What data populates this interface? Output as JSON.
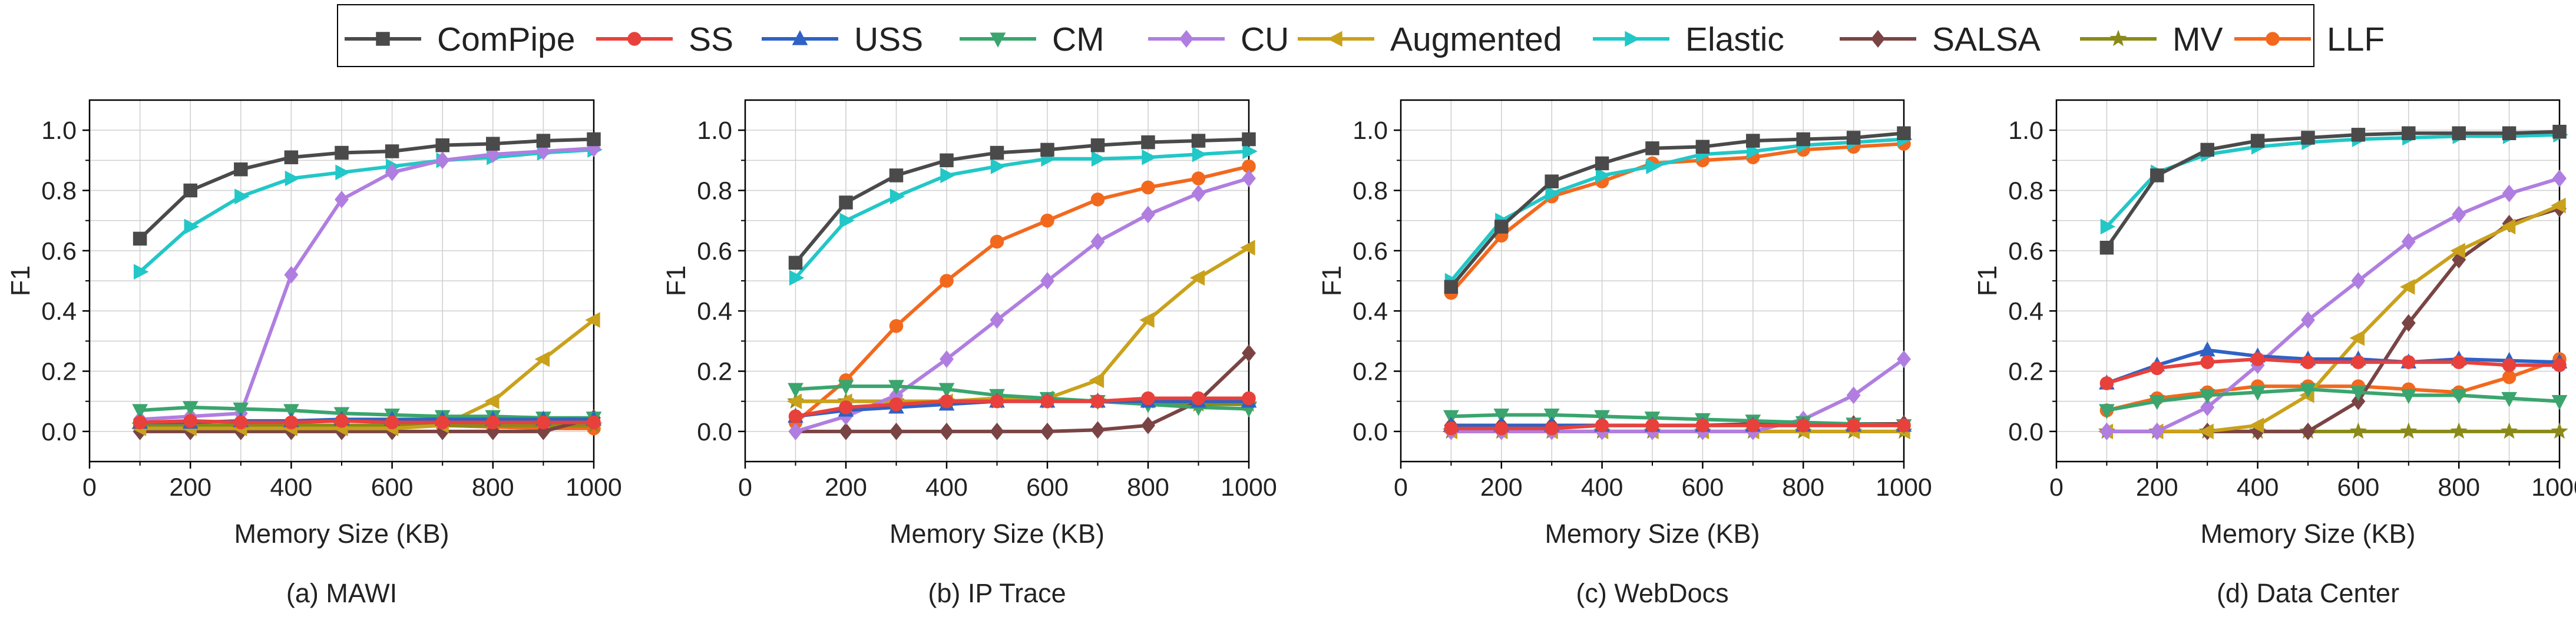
{
  "figure": {
    "subplots": [
      {
        "caption": "(a) MAWI"
      },
      {
        "caption": "(b) IP Trace"
      },
      {
        "caption": "(c) WebDocs"
      },
      {
        "caption": "(d) Data Center"
      }
    ]
  },
  "legend": {
    "entries": [
      "ComPipe",
      "SS",
      "USS",
      "CM",
      "CU",
      "Augmented",
      "Elastic",
      "SALSA",
      "MV",
      "LLF"
    ]
  },
  "series_style": {
    "ComPipe": {
      "color": "#4a4a4a",
      "marker": "square"
    },
    "SS": {
      "color": "#e8413c",
      "marker": "circle"
    },
    "USS": {
      "color": "#2f62c4",
      "marker": "triangle-up"
    },
    "CM": {
      "color": "#3aa56e",
      "marker": "triangle-down"
    },
    "CU": {
      "color": "#b07ee0",
      "marker": "diamond"
    },
    "Augmented": {
      "color": "#c9a11b",
      "marker": "triangle-left"
    },
    "Elastic": {
      "color": "#22c7c7",
      "marker": "triangle-right"
    },
    "SALSA": {
      "color": "#7a4444",
      "marker": "diamond"
    },
    "MV": {
      "color": "#8a8a18",
      "marker": "star"
    },
    "LLF": {
      "color": "#f2691e",
      "marker": "circle"
    }
  },
  "chart_data": [
    {
      "type": "line",
      "title": "(a) MAWI",
      "xlabel": "Memory Size (KB)",
      "ylabel": "F1",
      "xlim": [
        0,
        1000
      ],
      "ylim": [
        -0.1,
        1.1
      ],
      "xticks": [
        "0",
        "200",
        "400",
        "600",
        "800",
        "1000"
      ],
      "yticks": [
        "0.0",
        "0.2",
        "0.4",
        "0.6",
        "0.8",
        "1.0"
      ],
      "grid": true,
      "x": [
        100,
        200,
        300,
        400,
        500,
        600,
        700,
        800,
        900,
        1000
      ],
      "series": [
        {
          "name": "ComPipe",
          "values": [
            0.64,
            0.8,
            0.87,
            0.91,
            0.925,
            0.93,
            0.95,
            0.955,
            0.965,
            0.97
          ]
        },
        {
          "name": "SS",
          "values": [
            0.03,
            0.035,
            0.03,
            0.03,
            0.035,
            0.03,
            0.03,
            0.03,
            0.03,
            0.03
          ]
        },
        {
          "name": "USS",
          "values": [
            0.03,
            0.03,
            0.035,
            0.035,
            0.04,
            0.04,
            0.04,
            0.04,
            0.04,
            0.04
          ]
        },
        {
          "name": "CM",
          "values": [
            0.07,
            0.08,
            0.075,
            0.07,
            0.06,
            0.055,
            0.05,
            0.05,
            0.045,
            0.045
          ]
        },
        {
          "name": "CU",
          "values": [
            0.04,
            0.05,
            0.06,
            0.52,
            0.77,
            0.86,
            0.9,
            0.92,
            0.93,
            0.94
          ]
        },
        {
          "name": "Augmented",
          "values": [
            0.01,
            0.01,
            0.01,
            0.01,
            0.01,
            0.01,
            0.02,
            0.1,
            0.24,
            0.37
          ]
        },
        {
          "name": "Elastic",
          "values": [
            0.53,
            0.68,
            0.78,
            0.84,
            0.86,
            0.88,
            0.9,
            0.91,
            0.925,
            0.935
          ]
        },
        {
          "name": "SALSA",
          "values": [
            0.0,
            0.0,
            0.0,
            0.0,
            0.0,
            0.0,
            0.0,
            0.0,
            0.0,
            0.045
          ]
        },
        {
          "name": "MV",
          "values": [
            0.02,
            0.02,
            0.02,
            0.02,
            0.02,
            0.02,
            0.02,
            0.02,
            0.02,
            0.02
          ]
        },
        {
          "name": "LLF",
          "values": [
            0.02,
            0.02,
            0.02,
            0.02,
            0.02,
            0.02,
            0.02,
            0.015,
            0.01,
            0.01
          ]
        }
      ]
    },
    {
      "type": "line",
      "title": "(b) IP Trace",
      "xlabel": "Memory Size (KB)",
      "ylabel": "F1",
      "xlim": [
        0,
        1000
      ],
      "ylim": [
        -0.1,
        1.1
      ],
      "xticks": [
        "0",
        "200",
        "400",
        "600",
        "800",
        "1000"
      ],
      "yticks": [
        "0.0",
        "0.2",
        "0.4",
        "0.6",
        "0.8",
        "1.0"
      ],
      "grid": true,
      "x": [
        100,
        200,
        300,
        400,
        500,
        600,
        700,
        800,
        900,
        1000
      ],
      "series": [
        {
          "name": "ComPipe",
          "values": [
            0.56,
            0.76,
            0.85,
            0.9,
            0.925,
            0.935,
            0.95,
            0.96,
            0.965,
            0.97
          ]
        },
        {
          "name": "SS",
          "values": [
            0.05,
            0.08,
            0.09,
            0.1,
            0.1,
            0.1,
            0.1,
            0.11,
            0.11,
            0.11
          ]
        },
        {
          "name": "USS",
          "values": [
            0.05,
            0.07,
            0.08,
            0.09,
            0.1,
            0.1,
            0.1,
            0.1,
            0.1,
            0.1
          ]
        },
        {
          "name": "CM",
          "values": [
            0.14,
            0.15,
            0.15,
            0.14,
            0.12,
            0.11,
            0.1,
            0.09,
            0.08,
            0.075
          ]
        },
        {
          "name": "CU",
          "values": [
            0.0,
            0.05,
            0.12,
            0.24,
            0.37,
            0.5,
            0.63,
            0.72,
            0.79,
            0.84
          ]
        },
        {
          "name": "Augmented",
          "values": [
            0.1,
            0.1,
            0.1,
            0.1,
            0.11,
            0.11,
            0.17,
            0.37,
            0.51,
            0.61
          ]
        },
        {
          "name": "Elastic",
          "values": [
            0.51,
            0.7,
            0.78,
            0.85,
            0.88,
            0.905,
            0.905,
            0.91,
            0.92,
            0.93
          ]
        },
        {
          "name": "SALSA",
          "values": [
            0.0,
            0.0,
            0.0,
            0.0,
            0.0,
            0.0,
            0.005,
            0.02,
            0.1,
            0.26
          ]
        },
        {
          "name": "MV",
          "values": [
            0.1,
            0.1,
            0.1,
            0.1,
            0.1,
            0.1,
            0.1,
            0.1,
            0.09,
            0.09
          ]
        },
        {
          "name": "LLF",
          "values": [
            0.03,
            0.17,
            0.35,
            0.5,
            0.63,
            0.7,
            0.77,
            0.81,
            0.84,
            0.88
          ]
        }
      ]
    },
    {
      "type": "line",
      "title": "(c) WebDocs",
      "xlabel": "Memory Size (KB)",
      "ylabel": "F1",
      "xlim": [
        0,
        1000
      ],
      "ylim": [
        -0.1,
        1.1
      ],
      "xticks": [
        "0",
        "200",
        "400",
        "600",
        "800",
        "1000"
      ],
      "yticks": [
        "0.0",
        "0.2",
        "0.4",
        "0.6",
        "0.8",
        "1.0"
      ],
      "grid": true,
      "x": [
        100,
        200,
        300,
        400,
        500,
        600,
        700,
        800,
        900,
        1000
      ],
      "series": [
        {
          "name": "ComPipe",
          "values": [
            0.48,
            0.68,
            0.83,
            0.89,
            0.94,
            0.945,
            0.965,
            0.97,
            0.975,
            0.99
          ]
        },
        {
          "name": "SS",
          "values": [
            0.01,
            0.01,
            0.01,
            0.02,
            0.02,
            0.02,
            0.02,
            0.02,
            0.02,
            0.02
          ]
        },
        {
          "name": "USS",
          "values": [
            0.02,
            0.02,
            0.02,
            0.02,
            0.02,
            0.02,
            0.02,
            0.02,
            0.02,
            0.02
          ]
        },
        {
          "name": "CM",
          "values": [
            0.05,
            0.055,
            0.055,
            0.05,
            0.045,
            0.04,
            0.035,
            0.03,
            0.025,
            0.02
          ]
        },
        {
          "name": "CU",
          "values": [
            0.0,
            0.0,
            0.0,
            0.0,
            0.0,
            0.0,
            0.0,
            0.04,
            0.12,
            0.24
          ]
        },
        {
          "name": "Augmented",
          "values": [
            0.0,
            0.0,
            0.0,
            0.0,
            0.0,
            0.0,
            0.0,
            0.0,
            0.0,
            0.0
          ]
        },
        {
          "name": "Elastic",
          "values": [
            0.5,
            0.7,
            0.79,
            0.85,
            0.88,
            0.92,
            0.93,
            0.95,
            0.96,
            0.97
          ]
        },
        {
          "name": "SALSA",
          "values": [
            0.02,
            0.02,
            0.02,
            0.02,
            0.02,
            0.02,
            0.025,
            0.025,
            0.025,
            0.025
          ]
        },
        {
          "name": "MV",
          "values": [
            0.0,
            0.0,
            0.0,
            0.0,
            0.0,
            0.0,
            0.0,
            0.0,
            0.0,
            0.0
          ]
        },
        {
          "name": "LLF",
          "values": [
            0.46,
            0.65,
            0.78,
            0.83,
            0.89,
            0.9,
            0.91,
            0.935,
            0.945,
            0.955
          ]
        }
      ]
    },
    {
      "type": "line",
      "title": "(d) Data Center",
      "xlabel": "Memory Size (KB)",
      "ylabel": "F1",
      "xlim": [
        0,
        1000
      ],
      "ylim": [
        -0.1,
        1.1
      ],
      "xticks": [
        "0",
        "200",
        "400",
        "600",
        "800",
        "1000"
      ],
      "yticks": [
        "0.0",
        "0.2",
        "0.4",
        "0.6",
        "0.8",
        "1.0"
      ],
      "grid": true,
      "x": [
        100,
        200,
        300,
        400,
        500,
        600,
        700,
        800,
        900,
        1000
      ],
      "series": [
        {
          "name": "ComPipe",
          "values": [
            0.61,
            0.85,
            0.935,
            0.965,
            0.975,
            0.985,
            0.99,
            0.99,
            0.99,
            0.995
          ]
        },
        {
          "name": "SS",
          "values": [
            0.16,
            0.21,
            0.23,
            0.24,
            0.23,
            0.23,
            0.23,
            0.23,
            0.22,
            0.22
          ]
        },
        {
          "name": "USS",
          "values": [
            0.16,
            0.22,
            0.27,
            0.25,
            0.24,
            0.24,
            0.23,
            0.24,
            0.235,
            0.23
          ]
        },
        {
          "name": "CM",
          "values": [
            0.07,
            0.1,
            0.12,
            0.13,
            0.14,
            0.13,
            0.12,
            0.12,
            0.11,
            0.1
          ]
        },
        {
          "name": "CU",
          "values": [
            0.0,
            0.0,
            0.08,
            0.22,
            0.37,
            0.5,
            0.63,
            0.72,
            0.79,
            0.84
          ]
        },
        {
          "name": "Augmented",
          "values": [
            0.0,
            0.0,
            0.0,
            0.02,
            0.12,
            0.31,
            0.48,
            0.6,
            0.68,
            0.75
          ]
        },
        {
          "name": "Elastic",
          "values": [
            0.68,
            0.86,
            0.92,
            0.945,
            0.96,
            0.97,
            0.975,
            0.98,
            0.98,
            0.985
          ]
        },
        {
          "name": "SALSA",
          "values": [
            0.0,
            0.0,
            0.0,
            0.0,
            0.0,
            0.1,
            0.36,
            0.57,
            0.69,
            0.74
          ]
        },
        {
          "name": "MV",
          "values": [
            0.0,
            0.0,
            0.0,
            0.0,
            0.0,
            0.0,
            0.0,
            0.0,
            0.0,
            0.0
          ]
        },
        {
          "name": "LLF",
          "values": [
            0.07,
            0.11,
            0.13,
            0.15,
            0.15,
            0.15,
            0.14,
            0.13,
            0.18,
            0.24
          ]
        }
      ]
    }
  ]
}
